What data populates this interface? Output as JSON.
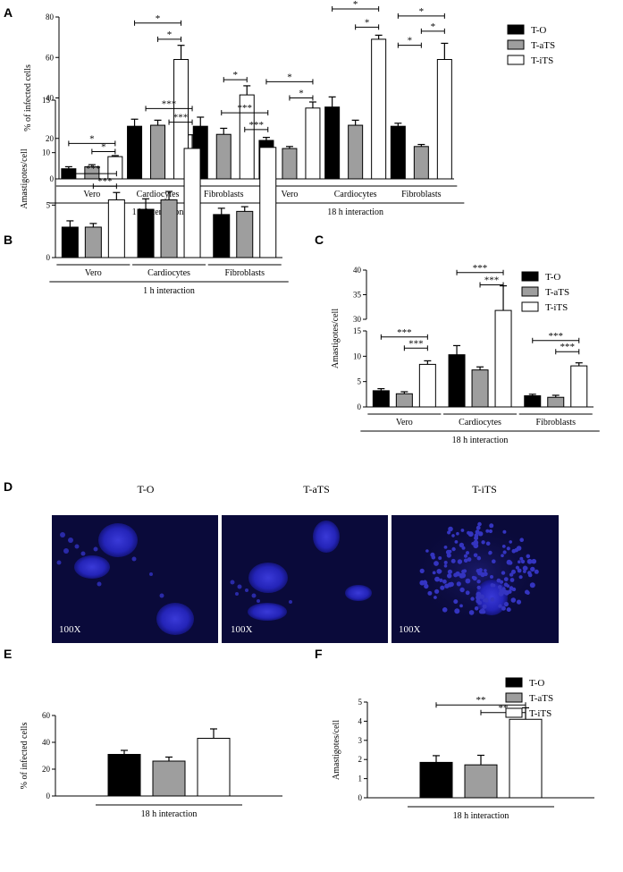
{
  "colors": {
    "T-O": "#000000",
    "T-aTS": "#9e9e9e",
    "T-iTS": "#ffffff",
    "micro_bg": "#0a0a3a"
  },
  "panels": {
    "A": {
      "letter": "A"
    },
    "B": {
      "letter": "B"
    },
    "C": {
      "letter": "C"
    },
    "D": {
      "letter": "D"
    },
    "E": {
      "letter": "E"
    },
    "F": {
      "letter": "F"
    }
  },
  "chart_data": [
    {
      "id": "A",
      "type": "bar",
      "ylabel": "% of infected cells",
      "ylim": [
        0,
        80
      ],
      "yticks": [
        0,
        20,
        40,
        60,
        80
      ],
      "series_names": [
        "T-O",
        "T-aTS",
        "T-iTS"
      ],
      "legend": {
        "position": "top-right",
        "entries": [
          "T-O",
          "T-aTS",
          "T-iTS"
        ]
      },
      "categories": [
        "Vero",
        "Cardiocytes",
        "Fibroblasts",
        "Vero",
        "Cardiocytes",
        "Fibroblasts"
      ],
      "values": [
        [
          5,
          6,
          11
        ],
        [
          26,
          26.5,
          59
        ],
        [
          26,
          22,
          41.5
        ],
        [
          19,
          15,
          35
        ],
        [
          35.5,
          26.5,
          69
        ],
        [
          26,
          16,
          59
        ]
      ],
      "errors": [
        [
          1,
          1,
          0.5
        ],
        [
          3.5,
          2.5,
          7
        ],
        [
          4.5,
          3,
          4.5
        ],
        [
          1.5,
          1,
          3
        ],
        [
          5,
          2.5,
          2
        ],
        [
          1.5,
          1,
          8
        ]
      ],
      "groups": [
        {
          "label": "1 h interaction",
          "span": [
            0,
            2
          ]
        },
        {
          "label": "18 h interaction",
          "span": [
            3,
            5
          ]
        }
      ],
      "significance": [
        {
          "cat": 0,
          "from": 0,
          "to": 2,
          "y": 17.5,
          "label": "*"
        },
        {
          "cat": 0,
          "from": 1,
          "to": 2,
          "y": 13.5,
          "label": "*"
        },
        {
          "cat": 1,
          "from": 0,
          "to": 2,
          "y": 77,
          "label": "*"
        },
        {
          "cat": 1,
          "from": 1,
          "to": 2,
          "y": 69,
          "label": "*"
        },
        {
          "cat": 2,
          "from": 1,
          "to": 2,
          "y": 49,
          "label": "*"
        },
        {
          "cat": 3,
          "from": 0,
          "to": 2,
          "y": 48,
          "label": "*"
        },
        {
          "cat": 3,
          "from": 1,
          "to": 2,
          "y": 40,
          "label": "*"
        },
        {
          "cat": 4,
          "from": 0,
          "to": 2,
          "y": 84,
          "label": "*"
        },
        {
          "cat": 4,
          "from": 1,
          "to": 2,
          "y": 75,
          "label": "*"
        },
        {
          "cat": 5,
          "from": 0,
          "to": 2,
          "y": 80.5,
          "label": "*"
        },
        {
          "cat": 5,
          "from": 0,
          "to": 1,
          "y": 66,
          "label": "*"
        },
        {
          "cat": 5,
          "from": 1,
          "to": 2,
          "y": 73,
          "label": "*"
        }
      ]
    },
    {
      "id": "B",
      "type": "bar",
      "ylabel": "Amastigotes/cell",
      "ylim": [
        0,
        15
      ],
      "yticks": [
        0,
        5,
        10,
        15
      ],
      "series_names": [
        "T-O",
        "T-aTS",
        "T-iTS"
      ],
      "categories": [
        "Vero",
        "Cardiocytes",
        "Fibroblasts"
      ],
      "values": [
        [
          2.9,
          2.9,
          5.5
        ],
        [
          4.6,
          5.5,
          10.4
        ],
        [
          4.1,
          4.4,
          10.5
        ]
      ],
      "errors": [
        [
          0.6,
          0.35,
          0.7
        ],
        [
          1.0,
          0.8,
          1.3
        ],
        [
          0.6,
          0.45,
          0.6
        ]
      ],
      "groups": [
        {
          "label": "1 h interaction",
          "span": [
            0,
            2
          ]
        }
      ],
      "significance": [
        {
          "cat": 0,
          "from": 0,
          "to": 2,
          "y": 8.0,
          "label": "***"
        },
        {
          "cat": 0,
          "from": 1,
          "to": 2,
          "y": 6.8,
          "label": "***"
        },
        {
          "cat": 1,
          "from": 0,
          "to": 2,
          "y": 14.2,
          "label": "***"
        },
        {
          "cat": 1,
          "from": 1,
          "to": 2,
          "y": 12.9,
          "label": "***"
        },
        {
          "cat": 2,
          "from": 0,
          "to": 2,
          "y": 13.8,
          "label": "***"
        },
        {
          "cat": 2,
          "from": 1,
          "to": 2,
          "y": 12.2,
          "label": "***"
        }
      ]
    },
    {
      "id": "C",
      "type": "bar",
      "ylabel": "Amastigotes/cell",
      "axis_break": {
        "lower": [
          0,
          15
        ],
        "upper": [
          30,
          40
        ]
      },
      "yticks_lower": [
        0,
        5,
        10,
        15
      ],
      "yticks_upper": [
        30,
        35,
        40
      ],
      "series_names": [
        "T-O",
        "T-aTS",
        "T-iTS"
      ],
      "legend": {
        "position": "top-right",
        "entries": [
          "T-O",
          "T-aTS",
          "T-iTS"
        ]
      },
      "categories": [
        "Vero",
        "Cardiocytes",
        "Fibroblasts"
      ],
      "values": [
        [
          3.2,
          2.6,
          8.4
        ],
        [
          10.3,
          7.3,
          31.8
        ],
        [
          2.2,
          1.9,
          8.1
        ]
      ],
      "errors": [
        [
          0.4,
          0.4,
          0.7
        ],
        [
          1.8,
          0.6,
          5.0
        ],
        [
          0.3,
          0.4,
          0.6
        ]
      ],
      "groups": [
        {
          "label": "18 h interaction",
          "span": [
            0,
            2
          ]
        }
      ],
      "significance": [
        {
          "cat": 0,
          "from": 0,
          "to": 2,
          "y": 13.8,
          "label": "***"
        },
        {
          "cat": 0,
          "from": 1,
          "to": 2,
          "y": 11.6,
          "label": "***"
        },
        {
          "cat": 1,
          "from": 0,
          "to": 2,
          "y": 39.5,
          "label": "***"
        },
        {
          "cat": 1,
          "from": 1,
          "to": 2,
          "y": 37.0,
          "label": "***"
        },
        {
          "cat": 2,
          "from": 0,
          "to": 2,
          "y": 13.1,
          "label": "***"
        },
        {
          "cat": 2,
          "from": 1,
          "to": 2,
          "y": 10.9,
          "label": "***"
        }
      ]
    },
    {
      "id": "E",
      "type": "bar",
      "ylabel": "% of infected cells",
      "ylim": [
        0,
        60
      ],
      "yticks": [
        0,
        20,
        40,
        60
      ],
      "series_names": [
        "T-O",
        "T-aTS",
        "T-iTS"
      ],
      "categories": [
        ""
      ],
      "values": [
        [
          31,
          26,
          43
        ]
      ],
      "errors": [
        [
          3,
          3,
          7
        ]
      ],
      "groups": [
        {
          "label": "18 h interaction",
          "span": [
            0,
            0
          ]
        }
      ],
      "significance": []
    },
    {
      "id": "F",
      "type": "bar",
      "ylabel": "Amastigotes/cell",
      "ylim": [
        0,
        5
      ],
      "yticks": [
        0,
        1,
        2,
        3,
        4,
        5
      ],
      "series_names": [
        "T-O",
        "T-aTS",
        "T-iTS"
      ],
      "legend": {
        "position": "top-right",
        "entries": [
          "T-O",
          "T-aTS",
          "T-iTS"
        ]
      },
      "categories": [
        ""
      ],
      "values": [
        [
          1.85,
          1.72,
          4.1
        ]
      ],
      "errors": [
        [
          0.35,
          0.5,
          0.6
        ]
      ],
      "groups": [
        {
          "label": "18 h interaction",
          "span": [
            0,
            0
          ]
        }
      ],
      "significance": [
        {
          "cat": 0,
          "from": 0,
          "to": 2,
          "y": 4.85,
          "label": "**"
        },
        {
          "cat": 0,
          "from": 1,
          "to": 2,
          "y": 4.45,
          "label": "**"
        }
      ]
    }
  ],
  "micrographs": [
    {
      "title": "T-O",
      "label": "100X"
    },
    {
      "title": "T-aTS",
      "label": "100X"
    },
    {
      "title": "T-iTS",
      "label": "100X"
    }
  ]
}
